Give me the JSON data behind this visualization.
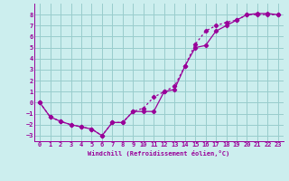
{
  "line1_x": [
    0,
    1,
    2,
    3,
    4,
    5,
    6,
    7,
    8,
    9,
    10,
    11,
    12,
    13,
    14,
    15,
    16,
    17,
    18,
    19,
    20,
    21,
    22,
    23
  ],
  "line1_y": [
    0,
    -1.3,
    -1.7,
    -2.0,
    -2.2,
    -2.4,
    -3.0,
    -1.8,
    -1.8,
    -0.8,
    -0.5,
    0.5,
    1.0,
    1.5,
    3.3,
    5.3,
    6.5,
    7.0,
    7.3,
    7.5,
    8.0,
    8.0,
    8.0,
    8.0
  ],
  "line2_x": [
    0,
    1,
    2,
    3,
    4,
    5,
    6,
    7,
    8,
    9,
    10,
    11,
    12,
    13,
    14,
    15,
    16,
    17,
    18,
    19,
    20,
    21,
    22,
    23
  ],
  "line2_y": [
    0,
    -1.3,
    -1.7,
    -2.0,
    -2.2,
    -2.4,
    -3.0,
    -1.8,
    -1.8,
    -0.8,
    -0.8,
    -0.8,
    1.0,
    1.2,
    3.3,
    5.0,
    5.2,
    6.5,
    7.0,
    7.5,
    8.0,
    8.1,
    8.1,
    8.0
  ],
  "color": "#990099",
  "bg_color": "#cceeee",
  "grid_color": "#99cccc",
  "xlabel": "Windchill (Refroidissement éolien,°C)",
  "ylim": [
    -3.5,
    9.0
  ],
  "xlim": [
    -0.5,
    23.5
  ],
  "yticks": [
    -3,
    -2,
    -1,
    0,
    1,
    2,
    3,
    4,
    5,
    6,
    7,
    8
  ],
  "xticks": [
    0,
    1,
    2,
    3,
    4,
    5,
    6,
    7,
    8,
    9,
    10,
    11,
    12,
    13,
    14,
    15,
    16,
    17,
    18,
    19,
    20,
    21,
    22,
    23
  ]
}
